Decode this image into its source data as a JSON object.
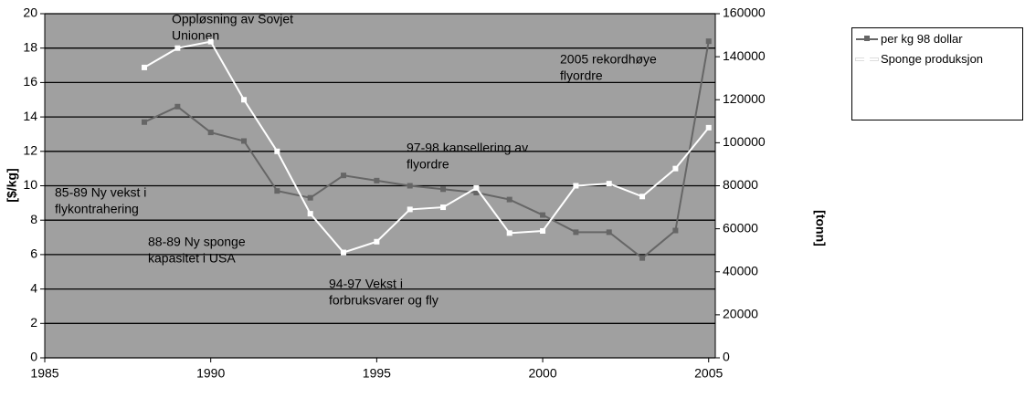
{
  "chart_data": {
    "type": "line",
    "x": [
      1988,
      1989,
      1990,
      1991,
      1992,
      1993,
      1994,
      1995,
      1996,
      1997,
      1998,
      1999,
      2000,
      2001,
      2002,
      2003,
      2004,
      2005
    ],
    "series": [
      {
        "name": "per kg 98 dollar",
        "color": "#666666",
        "axis": "y",
        "values": [
          13.7,
          14.6,
          13.1,
          12.6,
          9.7,
          9.3,
          10.6,
          10.3,
          10.0,
          9.8,
          9.6,
          9.2,
          8.3,
          7.3,
          7.3,
          5.8,
          7.4,
          18.4
        ]
      },
      {
        "name": "Sponge produksjon",
        "color": "#ffffff",
        "axis": "y2",
        "values": [
          135000,
          144000,
          147000,
          120000,
          96000,
          67000,
          49000,
          54000,
          69000,
          70000,
          79000,
          58000,
          59000,
          80000,
          81000,
          75000,
          88000,
          107000
        ]
      }
    ],
    "xlim": [
      1985,
      2005.2
    ],
    "xticks": [
      1985,
      1990,
      1995,
      2000,
      2005
    ],
    "ylim": [
      0,
      20
    ],
    "yticks": [
      0,
      2,
      4,
      6,
      8,
      10,
      12,
      14,
      16,
      18,
      20
    ],
    "y2lim": [
      0,
      160000
    ],
    "y2ticks": [
      0,
      20000,
      40000,
      60000,
      80000,
      100000,
      120000,
      140000,
      160000
    ],
    "ylabel": "[$/kg]",
    "y2label": "[tonn]",
    "grid": true,
    "plot_background": "#a0a0a0",
    "legend": "right",
    "annotations": [
      [
        "Oppløsning av Sovjet",
        "Unionen"
      ],
      [
        "2005 rekordhøye",
        "flyordre"
      ],
      [
        "97-98 kansellering av",
        "flyordre"
      ],
      [
        "85-89 Ny vekst i",
        "flykontrahering"
      ],
      [
        "88-89 Ny sponge",
        "kapasitet i USA"
      ],
      [
        "94-97 Vekst i",
        "forbruksvarer og fly"
      ]
    ]
  }
}
